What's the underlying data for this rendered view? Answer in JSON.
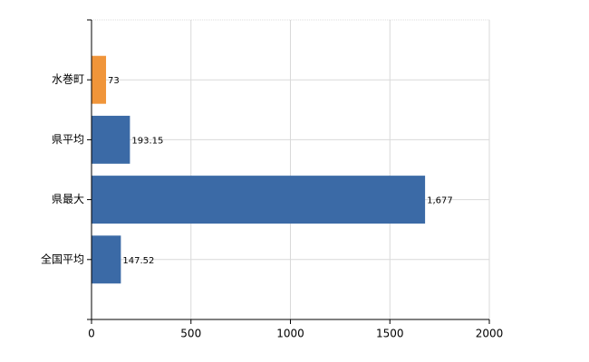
{
  "chart_data": {
    "type": "hbar",
    "categories": [
      "水巻町",
      "県平均",
      "県最大",
      "全国平均"
    ],
    "values": [
      73,
      193.15,
      1677,
      147.52
    ],
    "value_labels": [
      "73",
      "193.15",
      "1,677",
      "147.52"
    ],
    "colors": [
      "#f0953a",
      "#3b6aa6",
      "#3b6aa6",
      "#3b6aa6"
    ],
    "xlim": [
      0,
      2000
    ],
    "xticks": [
      0,
      500,
      1000,
      1500,
      2000
    ],
    "grid": true
  }
}
